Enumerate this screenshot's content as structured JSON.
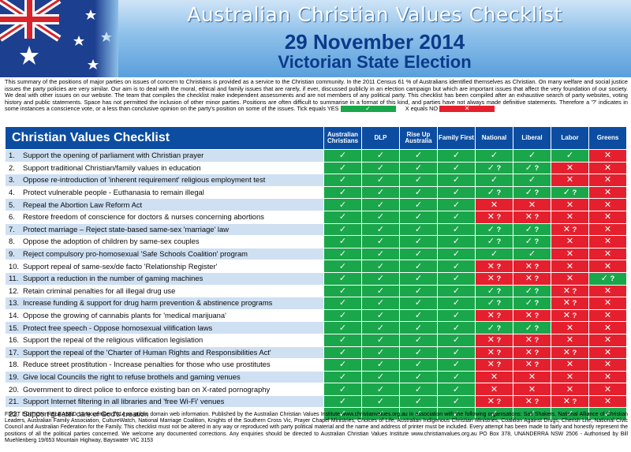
{
  "header": {
    "title": "Australian Christian Values Checklist",
    "date": "29 November 2014",
    "election": "Victorian State Election"
  },
  "intro": {
    "text": "This summary of the positions of major parties on issues of concern to Christians is provided as a service to the Christian community. In the 2011 Census 61 % of Australians identified themselves as Christian. On many welfare and social justice issues the party policies are very similar. Our aim is to deal with the moral, ethical and family issues that are rarely, if ever, discussed publicly in an election campaign but which are important issues that affect the very foundation of our society. We deal with other issues on our website. The team that compiles the checklist make independent assessments and are not members of any political party. This checklist has been compiled after an exhaustive search of party websites, voting history and public statements. Space has not permitted the inclusion of other minor parties. Positions are often difficult to summarise in a format of this kind, and parties have not always made definitive statements. Therefore a '?' indicates in some instances a conscience vote, or a less than conclusive opinion on the party's position on some of the issues. Tick equals YES",
    "no_label": "X equals NO",
    "yes_symbol": "✓",
    "no_symbol": "✕"
  },
  "table": {
    "title": "Christian Values Checklist",
    "parties": [
      "Australian Christians",
      "DLP",
      "Rise Up Australia",
      "Family First",
      "National",
      "Liberal",
      "Labor",
      "Greens"
    ],
    "rows": [
      {
        "num": "1.",
        "label": "Support the opening of parliament with Christian prayer",
        "cells": [
          [
            "y",
            ""
          ],
          [
            "y",
            ""
          ],
          [
            "y",
            ""
          ],
          [
            "y",
            ""
          ],
          [
            "y",
            ""
          ],
          [
            "y",
            ""
          ],
          [
            "y",
            ""
          ],
          [
            "n",
            ""
          ]
        ]
      },
      {
        "num": "2.",
        "label": "Support traditional Christian/family values in education",
        "cells": [
          [
            "y",
            ""
          ],
          [
            "y",
            ""
          ],
          [
            "y",
            ""
          ],
          [
            "y",
            ""
          ],
          [
            "y",
            "?"
          ],
          [
            "y",
            "?"
          ],
          [
            "n",
            ""
          ],
          [
            "n",
            ""
          ]
        ]
      },
      {
        "num": "3.",
        "label": "Oppose re-introduction of 'inherent requirement' religious employment test",
        "cells": [
          [
            "y",
            ""
          ],
          [
            "y",
            ""
          ],
          [
            "y",
            ""
          ],
          [
            "y",
            ""
          ],
          [
            "y",
            ""
          ],
          [
            "y",
            ""
          ],
          [
            "n",
            ""
          ],
          [
            "n",
            ""
          ]
        ]
      },
      {
        "num": "4.",
        "label": "Protect vulnerable people - Euthanasia to remain illegal",
        "cells": [
          [
            "y",
            ""
          ],
          [
            "y",
            ""
          ],
          [
            "y",
            ""
          ],
          [
            "y",
            ""
          ],
          [
            "y",
            "?"
          ],
          [
            "y",
            "?"
          ],
          [
            "y",
            "?"
          ],
          [
            "n",
            ""
          ]
        ]
      },
      {
        "num": "5.",
        "label": "Repeal the Abortion Law Reform Act",
        "cells": [
          [
            "y",
            ""
          ],
          [
            "y",
            ""
          ],
          [
            "y",
            ""
          ],
          [
            "y",
            ""
          ],
          [
            "n",
            ""
          ],
          [
            "n",
            ""
          ],
          [
            "n",
            ""
          ],
          [
            "n",
            ""
          ]
        ]
      },
      {
        "num": "6.",
        "label": "Restore freedom of conscience for doctors & nurses concerning abortions",
        "cells": [
          [
            "y",
            ""
          ],
          [
            "y",
            ""
          ],
          [
            "y",
            ""
          ],
          [
            "y",
            ""
          ],
          [
            "n",
            "?"
          ],
          [
            "n",
            "?"
          ],
          [
            "n",
            ""
          ],
          [
            "n",
            ""
          ]
        ]
      },
      {
        "num": "7.",
        "label": "Protect marriage – Reject state-based same-sex 'marriage' law",
        "cells": [
          [
            "y",
            ""
          ],
          [
            "y",
            ""
          ],
          [
            "y",
            ""
          ],
          [
            "y",
            ""
          ],
          [
            "y",
            "?"
          ],
          [
            "y",
            "?"
          ],
          [
            "n",
            "?"
          ],
          [
            "n",
            ""
          ]
        ]
      },
      {
        "num": "8.",
        "label": "Oppose the adoption of children by same-sex couples",
        "cells": [
          [
            "y",
            ""
          ],
          [
            "y",
            ""
          ],
          [
            "y",
            ""
          ],
          [
            "y",
            ""
          ],
          [
            "y",
            "?"
          ],
          [
            "y",
            "?"
          ],
          [
            "n",
            ""
          ],
          [
            "n",
            ""
          ]
        ]
      },
      {
        "num": "9.",
        "label": "Reject compulsory pro-homosexual 'Safe Schools Coalition' program",
        "cells": [
          [
            "y",
            ""
          ],
          [
            "y",
            ""
          ],
          [
            "y",
            ""
          ],
          [
            "y",
            ""
          ],
          [
            "y",
            ""
          ],
          [
            "y",
            ""
          ],
          [
            "n",
            ""
          ],
          [
            "n",
            ""
          ]
        ]
      },
      {
        "num": "10.",
        "label": "Support repeal of same-sex/de facto 'Relationship Register'",
        "cells": [
          [
            "y",
            ""
          ],
          [
            "y",
            ""
          ],
          [
            "y",
            ""
          ],
          [
            "y",
            ""
          ],
          [
            "n",
            "?"
          ],
          [
            "n",
            "?"
          ],
          [
            "n",
            ""
          ],
          [
            "n",
            ""
          ]
        ]
      },
      {
        "num": "11.",
        "label": "Support a reduction in the number of gaming machines",
        "cells": [
          [
            "y",
            ""
          ],
          [
            "y",
            ""
          ],
          [
            "y",
            ""
          ],
          [
            "y",
            ""
          ],
          [
            "n",
            "?"
          ],
          [
            "n",
            "?"
          ],
          [
            "n",
            ""
          ],
          [
            "y",
            "?"
          ]
        ]
      },
      {
        "num": "12.",
        "label": "Retain criminal penalties for all illegal drug use",
        "cells": [
          [
            "y",
            ""
          ],
          [
            "y",
            ""
          ],
          [
            "y",
            ""
          ],
          [
            "y",
            ""
          ],
          [
            "y",
            "?"
          ],
          [
            "y",
            "?"
          ],
          [
            "n",
            "?"
          ],
          [
            "n",
            ""
          ]
        ]
      },
      {
        "num": "13.",
        "label": "Increase funding & support for drug harm prevention & abstinence programs",
        "cells": [
          [
            "y",
            ""
          ],
          [
            "y",
            ""
          ],
          [
            "y",
            ""
          ],
          [
            "y",
            ""
          ],
          [
            "y",
            "?"
          ],
          [
            "y",
            "?"
          ],
          [
            "n",
            "?"
          ],
          [
            "n",
            ""
          ]
        ]
      },
      {
        "num": "14.",
        "label": "Oppose the growing of cannabis plants for 'medical marijuana'",
        "cells": [
          [
            "y",
            ""
          ],
          [
            "y",
            ""
          ],
          [
            "y",
            ""
          ],
          [
            "y",
            ""
          ],
          [
            "n",
            "?"
          ],
          [
            "n",
            "?"
          ],
          [
            "n",
            "?"
          ],
          [
            "n",
            ""
          ]
        ]
      },
      {
        "num": "15.",
        "label": "Protect free speech - Oppose homosexual vilification laws",
        "cells": [
          [
            "y",
            ""
          ],
          [
            "y",
            ""
          ],
          [
            "y",
            ""
          ],
          [
            "y",
            ""
          ],
          [
            "y",
            "?"
          ],
          [
            "y",
            "?"
          ],
          [
            "n",
            ""
          ],
          [
            "n",
            ""
          ]
        ]
      },
      {
        "num": "16.",
        "label": "Support the repeal of the religious vilification legislation",
        "cells": [
          [
            "y",
            ""
          ],
          [
            "y",
            ""
          ],
          [
            "y",
            ""
          ],
          [
            "y",
            ""
          ],
          [
            "n",
            "?"
          ],
          [
            "n",
            "?"
          ],
          [
            "n",
            ""
          ],
          [
            "n",
            ""
          ]
        ]
      },
      {
        "num": "17.",
        "label": "Support the repeal of the 'Charter of Human Rights and Responsibilities Act'",
        "cells": [
          [
            "y",
            ""
          ],
          [
            "y",
            ""
          ],
          [
            "y",
            ""
          ],
          [
            "y",
            ""
          ],
          [
            "n",
            "?"
          ],
          [
            "n",
            "?"
          ],
          [
            "n",
            "?"
          ],
          [
            "n",
            ""
          ]
        ]
      },
      {
        "num": "18.",
        "label": "Reduce street prostitution - Increase penalties for those who use prostitutes",
        "cells": [
          [
            "y",
            ""
          ],
          [
            "y",
            ""
          ],
          [
            "y",
            ""
          ],
          [
            "y",
            ""
          ],
          [
            "n",
            "?"
          ],
          [
            "n",
            "?"
          ],
          [
            "n",
            ""
          ],
          [
            "n",
            ""
          ]
        ]
      },
      {
        "num": "19.",
        "label": "Give local Councils the right to refuse brothels and gaming venues",
        "cells": [
          [
            "y",
            ""
          ],
          [
            "y",
            ""
          ],
          [
            "y",
            ""
          ],
          [
            "y",
            ""
          ],
          [
            "n",
            ""
          ],
          [
            "n",
            ""
          ],
          [
            "n",
            ""
          ],
          [
            "n",
            ""
          ]
        ]
      },
      {
        "num": "20.",
        "label": "Government to direct police to enforce existing ban on X-rated pornography",
        "cells": [
          [
            "y",
            ""
          ],
          [
            "y",
            ""
          ],
          [
            "y",
            ""
          ],
          [
            "y",
            ""
          ],
          [
            "n",
            ""
          ],
          [
            "n",
            ""
          ],
          [
            "n",
            ""
          ],
          [
            "n",
            ""
          ]
        ]
      },
      {
        "num": "21.",
        "label": "Support Internet filtering in all libraries and 'free Wi-Fi' venues",
        "cells": [
          [
            "y",
            ""
          ],
          [
            "y",
            ""
          ],
          [
            "y",
            ""
          ],
          [
            "y",
            ""
          ],
          [
            "n",
            "?"
          ],
          [
            "n",
            "?"
          ],
          [
            "n",
            "?"
          ],
          [
            "n",
            ""
          ]
        ]
      },
      {
        "num": "22.",
        "label": "Support greater care of God's creation",
        "cells": [
          [
            "y",
            ""
          ],
          [
            "y",
            ""
          ],
          [
            "y",
            ""
          ],
          [
            "y",
            ""
          ],
          [
            "y",
            ""
          ],
          [
            "y",
            ""
          ],
          [
            "y",
            ""
          ],
          [
            "y",
            ""
          ]
        ]
      }
    ]
  },
  "footer": {
    "text": "FIRST EDITION: RELEASED 13 November 2014 as public domain web information. Published by the Australian Christian Values Institute www.christianvalues.org.au in association with the following organisations: Salt Shakers, National Alliance of Christian Leaders, Australian Family Association, CultureWatch, National Marriage Coalition, Knights of the Southern Cross Vic, Prayer Chapel Ministries, Choices of Life, Australian Indigenous Christian Ministries, Coalition Against Drugs, Cherish Life, National Civic Council and Australian Federation for the Family. This checklist must not be altered in any way or reproduced with party political material and the name and address of printer must be included. Every attempt has been made to fairly and honestly represent the positions of all the political parties concerned. We welcome any documented corrections. Any enquiries should be directed to Australian Christian Values Institute www.christianvalues.org.au PO Box 378, UNANDERRA NSW 2506 - Authorised by Bill Muehlenberg 19/653 Mountain Highway, Bayswater VIC 3153"
  },
  "colors": {
    "yes": "#1aa64a",
    "no": "#e5202e",
    "header_blue": "#0d4da1",
    "title_blue": "#0c3a8a"
  }
}
